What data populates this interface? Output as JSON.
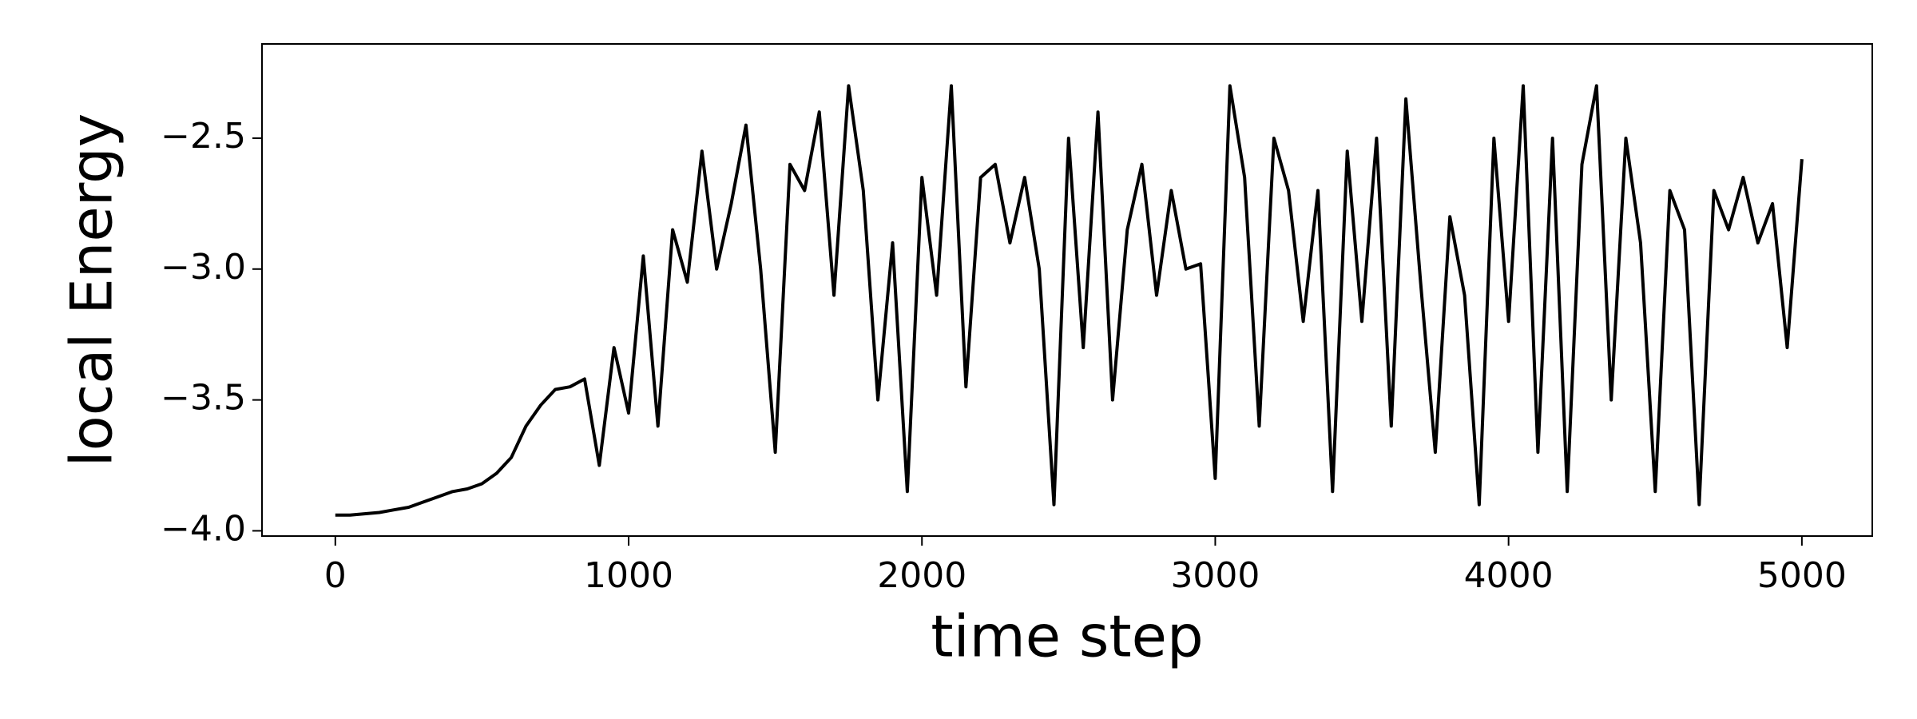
{
  "chart_data": {
    "type": "line",
    "x_label": "time step",
    "y_label": "local Energy",
    "x": [
      0,
      50,
      100,
      150,
      200,
      250,
      300,
      350,
      400,
      450,
      500,
      550,
      600,
      650,
      700,
      750,
      800,
      850,
      900,
      950,
      1000,
      1050,
      1100,
      1150,
      1200,
      1250,
      1300,
      1350,
      1400,
      1450,
      1500,
      1550,
      1600,
      1650,
      1700,
      1750,
      1800,
      1850,
      1900,
      1950,
      2000,
      2050,
      2100,
      2150,
      2200,
      2250,
      2300,
      2350,
      2400,
      2450,
      2500,
      2550,
      2600,
      2650,
      2700,
      2750,
      2800,
      2850,
      2900,
      2950,
      3000,
      3050,
      3100,
      3150,
      3200,
      3250,
      3300,
      3350,
      3400,
      3450,
      3500,
      3550,
      3600,
      3650,
      3700,
      3750,
      3800,
      3850,
      3900,
      3950,
      4000,
      4050,
      4100,
      4150,
      4200,
      4250,
      4300,
      4350,
      4400,
      4450,
      4500,
      4550,
      4600,
      4650,
      4700,
      4750,
      4800,
      4850,
      4900,
      4950,
      5000
    ],
    "series": [
      {
        "color": "#000000",
        "values": [
          -3.94,
          -3.94,
          -3.935,
          -3.93,
          -3.92,
          -3.91,
          -3.89,
          -3.87,
          -3.85,
          -3.84,
          -3.82,
          -3.78,
          -3.72,
          -3.6,
          -3.52,
          -3.46,
          -3.45,
          -3.42,
          -3.75,
          -3.3,
          -3.55,
          -2.95,
          -3.6,
          -2.85,
          -3.05,
          -2.55,
          -3.0,
          -2.75,
          -2.45,
          -3.0,
          -3.7,
          -2.6,
          -2.7,
          -2.4,
          -3.1,
          -2.3,
          -2.7,
          -3.5,
          -2.9,
          -3.85,
          -2.65,
          -3.1,
          -2.3,
          -3.45,
          -2.65,
          -2.6,
          -2.9,
          -2.65,
          -3.0,
          -3.9,
          -2.5,
          -3.3,
          -2.4,
          -3.5,
          -2.85,
          -2.6,
          -3.1,
          -2.7,
          -3.0,
          -2.98,
          -3.8,
          -2.3,
          -2.65,
          -3.6,
          -2.5,
          -2.7,
          -3.2,
          -2.7,
          -3.85,
          -2.55,
          -3.2,
          -2.5,
          -3.6,
          -2.35,
          -3.05,
          -3.7,
          -2.8,
          -3.1,
          -3.9,
          -2.5,
          -3.2,
          -2.3,
          -3.7,
          -2.5,
          -3.85,
          -2.6,
          -2.3,
          -3.5,
          -2.5,
          -2.9,
          -3.85,
          -2.7,
          -2.85,
          -3.9,
          -2.7,
          -2.85,
          -2.65,
          -2.9,
          -2.75,
          -3.3,
          -2.58
        ]
      }
    ],
    "xlim": [
      -250,
      5240
    ],
    "ylim": [
      -4.02,
      -2.14
    ],
    "xticks": [
      0,
      1000,
      2000,
      3000,
      4000,
      5000
    ],
    "yticks": [
      {
        "value": -4.0,
        "label": "−4.0"
      },
      {
        "value": -3.5,
        "label": "−3.5"
      },
      {
        "value": -3.0,
        "label": "−3.0"
      },
      {
        "value": -2.5,
        "label": "−2.5"
      }
    ],
    "grid": false
  }
}
